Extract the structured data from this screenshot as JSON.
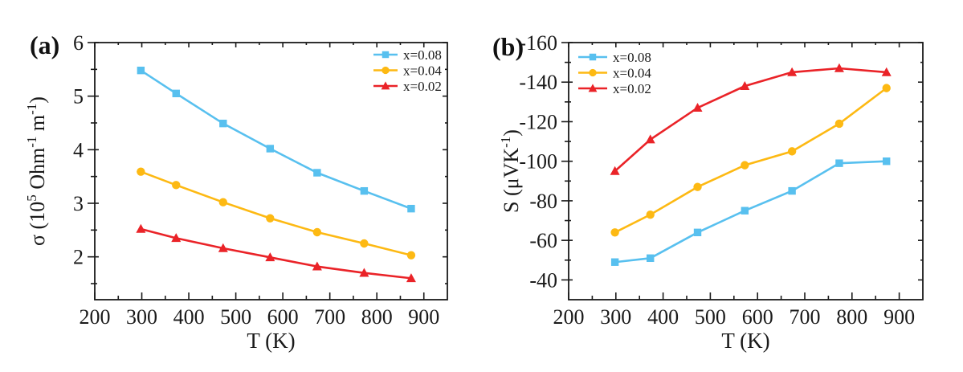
{
  "figure": {
    "background": "#ffffff",
    "text_color": "#1a1a1a"
  },
  "chart_data": [
    {
      "panel_label": "(a)",
      "type": "line",
      "title": "",
      "xlabel": "T (K)",
      "ylabel": "σ (10⁵ Ohm⁻¹ m⁻¹)",
      "ylabel_parts": [
        [
          "σ (10",
          0
        ],
        [
          "5",
          1
        ],
        [
          " Ohm",
          0
        ],
        [
          "-1",
          1
        ],
        [
          " m",
          0
        ],
        [
          "-1",
          1
        ],
        [
          ")",
          0
        ]
      ],
      "x": [
        298,
        373,
        473,
        573,
        673,
        773,
        873
      ],
      "series": [
        {
          "name": "x=0.08",
          "marker": "square",
          "color": "#58C0EF",
          "values": [
            5.48,
            5.05,
            4.49,
            4.02,
            3.57,
            3.23,
            2.9
          ]
        },
        {
          "name": "x=0.04",
          "marker": "circle",
          "color": "#FDB913",
          "values": [
            3.59,
            3.34,
            3.02,
            2.72,
            2.46,
            2.25,
            2.03
          ]
        },
        {
          "name": "x=0.02",
          "marker": "triangle",
          "color": "#EA2328",
          "values": [
            2.52,
            2.35,
            2.16,
            1.99,
            1.82,
            1.7,
            1.6
          ]
        }
      ],
      "xlim": [
        200,
        950
      ],
      "ylim": [
        1.2,
        6
      ],
      "x_major_ticks": [
        200,
        300,
        400,
        500,
        600,
        700,
        800,
        900
      ],
      "x_minor_ticks": [
        250,
        350,
        450,
        550,
        650,
        750,
        850
      ],
      "y_major_ticks": [
        2,
        3,
        4,
        5,
        6
      ],
      "y_minor_ticks": [
        1.5,
        2.5,
        3.5,
        4.5,
        5.5
      ],
      "grid": false,
      "legend_position": "top-right",
      "axis_color": "#1a1a1a"
    },
    {
      "panel_label": "(b)",
      "type": "line",
      "title": "",
      "xlabel": "T (K)",
      "ylabel": "S (μVK⁻¹)",
      "ylabel_parts": [
        [
          "S (μVK",
          0
        ],
        [
          "-1",
          1
        ],
        [
          ")",
          0
        ]
      ],
      "x": [
        298,
        373,
        473,
        573,
        673,
        773,
        873
      ],
      "series": [
        {
          "name": "x=0.08",
          "marker": "square",
          "color": "#58C0EF",
          "values": [
            -49,
            -51,
            -64,
            -75,
            -85,
            -99,
            -100
          ]
        },
        {
          "name": "x=0.04",
          "marker": "circle",
          "color": "#FDB913",
          "values": [
            -64,
            -73,
            -87,
            -98,
            -105,
            -119,
            -137
          ]
        },
        {
          "name": "x=0.02",
          "marker": "triangle",
          "color": "#EA2328",
          "values": [
            -95,
            -111,
            -127,
            -138,
            -145,
            -147,
            -145
          ]
        }
      ],
      "xlim": [
        200,
        950
      ],
      "ylim": [
        -30,
        -160
      ],
      "x_major_ticks": [
        200,
        300,
        400,
        500,
        600,
        700,
        800,
        900
      ],
      "x_minor_ticks": [
        250,
        350,
        450,
        550,
        650,
        750,
        850
      ],
      "y_major_ticks": [
        -160,
        -140,
        -120,
        -100,
        -80,
        -60,
        -40
      ],
      "y_minor_ticks": [
        -150,
        -130,
        -110,
        -90,
        -70,
        -50
      ],
      "grid": false,
      "legend_position": "top-left",
      "axis_color": "#1a1a1a"
    }
  ]
}
